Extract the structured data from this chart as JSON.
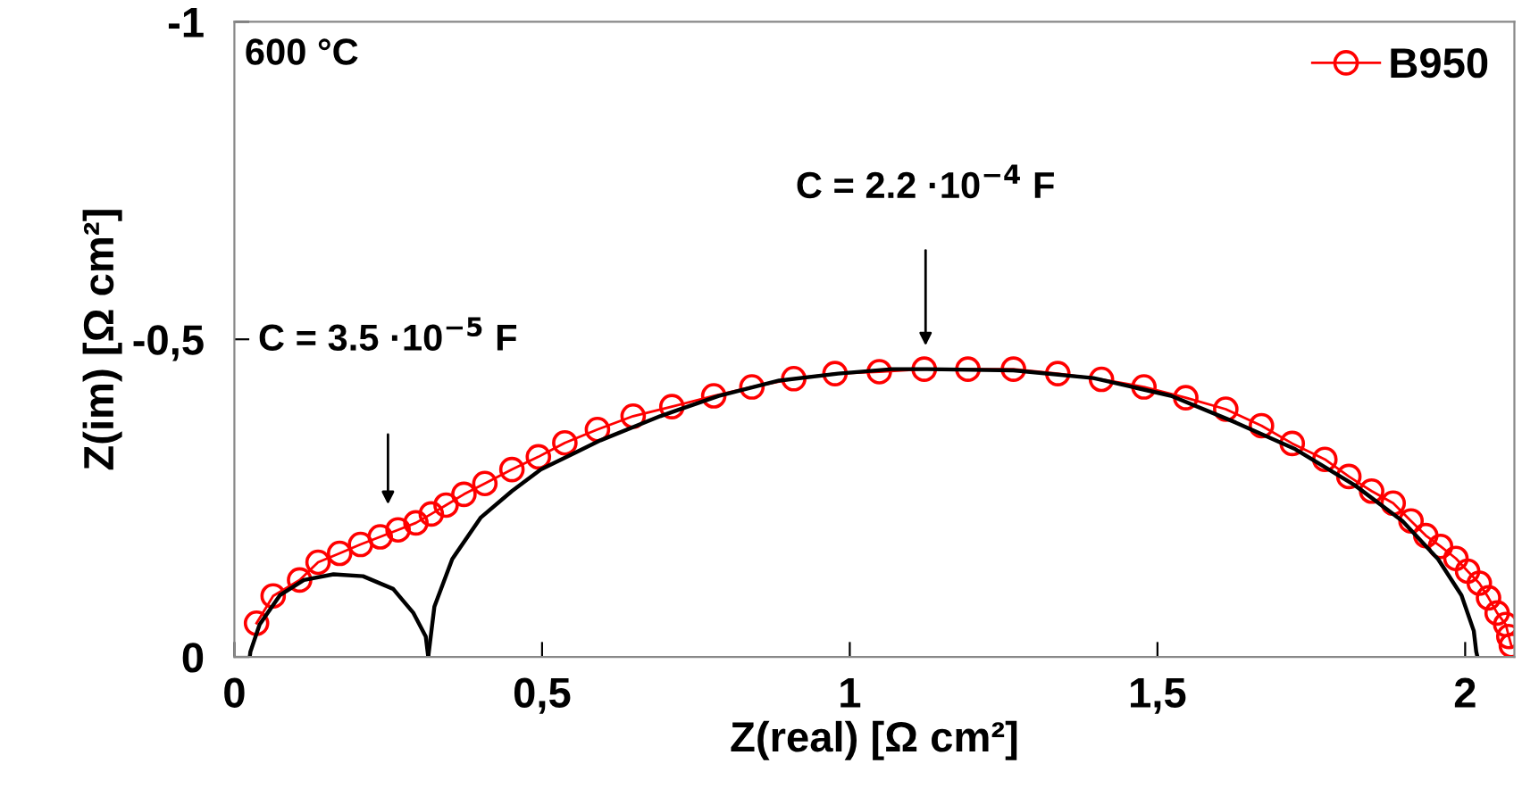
{
  "chart_data": {
    "type": "line",
    "xlabel": "Z(real) [Ω cm²]",
    "ylabel": "Z(im) [Ω cm²]",
    "xlim": [
      0,
      2.08
    ],
    "ylim": [
      0,
      -1
    ],
    "xticks": [
      0,
      {
        "value": 0.5,
        "label": "0,5"
      },
      1,
      {
        "value": 1.5,
        "label": "1,5"
      },
      2
    ],
    "yticks": [
      0,
      {
        "value": -0.5,
        "label": "-0,5"
      },
      -1
    ],
    "grid": false,
    "legend": "top right",
    "annotations": [
      "600 °C",
      "C = 3.5 ·10$^{−5}$ F",
      "C = 2.2 ·10$^{−4}$ F"
    ],
    "series": [
      {
        "name": "B950",
        "color": "#ff0000",
        "marker": "circle",
        "line_style": "solid",
        "x": [
          0.036,
          0.063,
          0.106,
          0.136,
          0.171,
          0.205,
          0.237,
          0.266,
          0.295,
          0.32,
          0.344,
          0.373,
          0.407,
          0.451,
          0.494,
          0.537,
          0.59,
          0.648,
          0.711,
          0.779,
          0.841,
          0.909,
          0.976,
          1.048,
          1.121,
          1.192,
          1.266,
          1.338,
          1.409,
          1.478,
          1.546,
          1.611,
          1.669,
          1.719,
          1.772,
          1.811,
          1.848,
          1.883,
          1.912,
          1.936,
          1.96,
          1.985,
          2.004,
          2.023,
          2.038,
          2.052,
          2.066,
          2.071,
          2.075
        ],
        "values": [
          -0.053,
          -0.096,
          -0.121,
          -0.149,
          -0.163,
          -0.177,
          -0.189,
          -0.2,
          -0.211,
          -0.225,
          -0.239,
          -0.256,
          -0.273,
          -0.295,
          -0.315,
          -0.337,
          -0.358,
          -0.379,
          -0.394,
          -0.411,
          -0.425,
          -0.438,
          -0.446,
          -0.449,
          -0.453,
          -0.453,
          -0.453,
          -0.446,
          -0.437,
          -0.425,
          -0.408,
          -0.39,
          -0.364,
          -0.336,
          -0.311,
          -0.284,
          -0.261,
          -0.242,
          -0.214,
          -0.191,
          -0.174,
          -0.155,
          -0.135,
          -0.116,
          -0.093,
          -0.069,
          -0.051,
          -0.032,
          -0.018
        ]
      },
      {
        "color": "#000000",
        "marker": "none",
        "line_style": "solid",
        "x": [
          0.025,
          0.026,
          0.041,
          0.074,
          0.113,
          0.161,
          0.209,
          0.258,
          0.291,
          0.311,
          0.315
        ],
        "values": [
          0,
          -0.008,
          -0.051,
          -0.097,
          -0.121,
          -0.13,
          -0.127,
          -0.107,
          -0.069,
          -0.032,
          0
        ]
      },
      {
        "color": "#000000",
        "marker": "none",
        "line_style": "solid",
        "x": [
          0.315,
          0.325,
          0.354,
          0.4,
          0.451,
          0.498,
          0.595,
          0.692,
          0.787,
          0.885,
          0.981,
          1.068,
          1.126,
          1.266,
          1.396,
          1.522,
          1.627,
          1.724,
          1.821,
          1.898,
          1.956,
          1.994,
          2.014,
          2.018,
          2.02
        ],
        "values": [
          0,
          -0.079,
          -0.154,
          -0.219,
          -0.261,
          -0.295,
          -0.341,
          -0.379,
          -0.411,
          -0.435,
          -0.446,
          -0.453,
          -0.453,
          -0.451,
          -0.439,
          -0.411,
          -0.369,
          -0.327,
          -0.27,
          -0.214,
          -0.154,
          -0.097,
          -0.041,
          -0.008,
          0
        ]
      }
    ]
  }
}
